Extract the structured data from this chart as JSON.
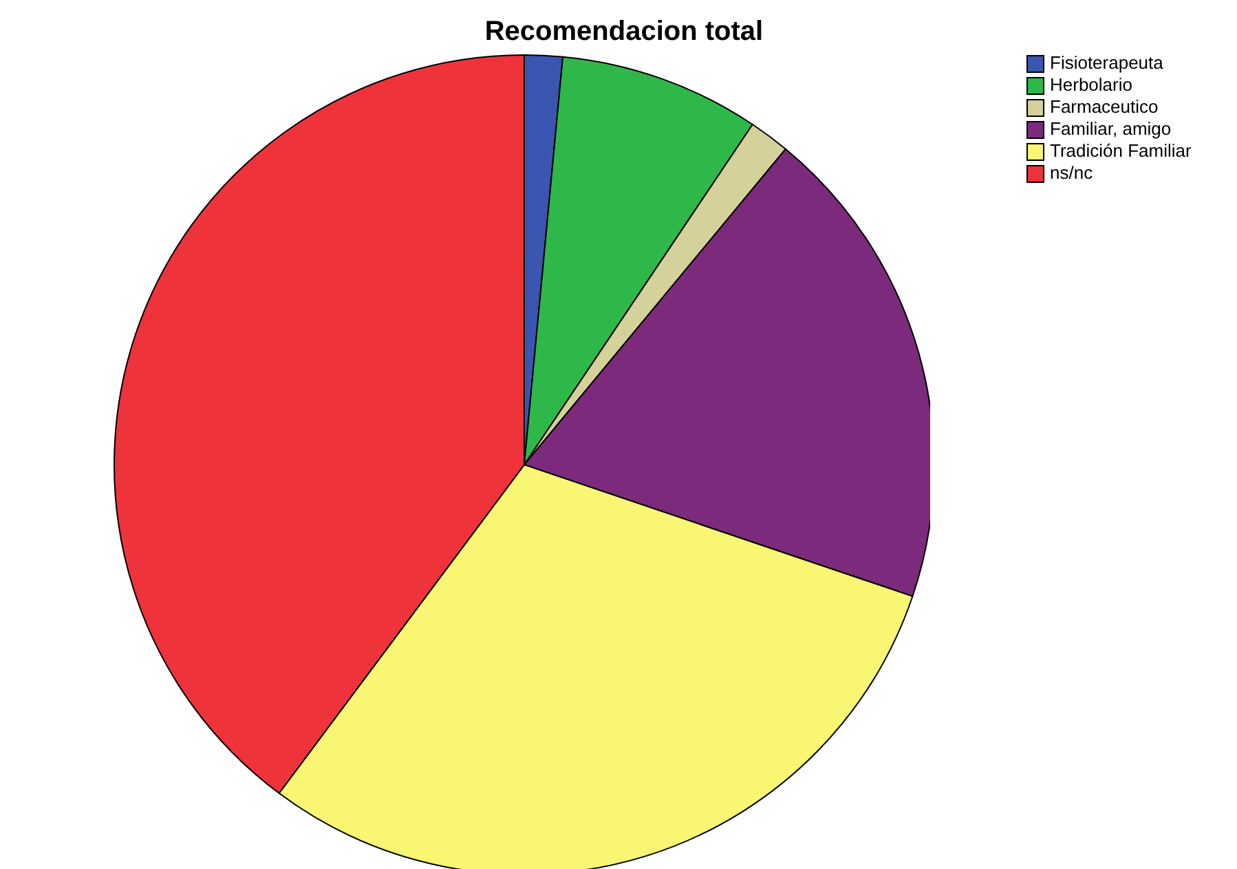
{
  "chart_data": {
    "type": "pie",
    "title": "Recomendacion total",
    "categories": [
      "Fisioterapeuta",
      "Herbolario",
      "Farmaceutico",
      "Familiar, amigo",
      "Tradición Familiar",
      "ns/nc"
    ],
    "values": [
      1.5,
      7.9,
      1.6,
      19.2,
      30.0,
      39.8
    ],
    "colors": [
      "#3a56b0",
      "#2fb84a",
      "#d4d19a",
      "#7b2a7c",
      "#f8f672",
      "#ef333b"
    ],
    "legend": "top right"
  }
}
